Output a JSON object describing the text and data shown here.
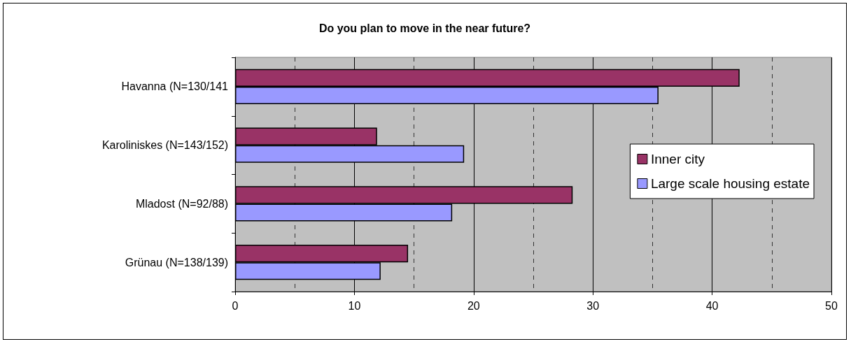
{
  "chart_data": {
    "type": "bar",
    "orientation": "horizontal",
    "title": "Do you plan to move in the near future?",
    "categories": [
      "Havanna (N=130/141",
      "Karoliniskes (N=143/152)",
      "Mladost (N=92/88)",
      "Grünau (N=138/139)"
    ],
    "series": [
      {
        "name": "Inner city",
        "color": "#993366",
        "values": [
          42.3,
          11.9,
          28.3,
          14.5
        ]
      },
      {
        "name": "Large scale housing estate",
        "color": "#9999ff",
        "values": [
          35.5,
          19.2,
          18.2,
          12.2
        ]
      }
    ],
    "xlim": [
      0,
      50
    ],
    "xticks": [
      0,
      10,
      20,
      30,
      40,
      50
    ],
    "grid": "x",
    "legend": "right"
  }
}
